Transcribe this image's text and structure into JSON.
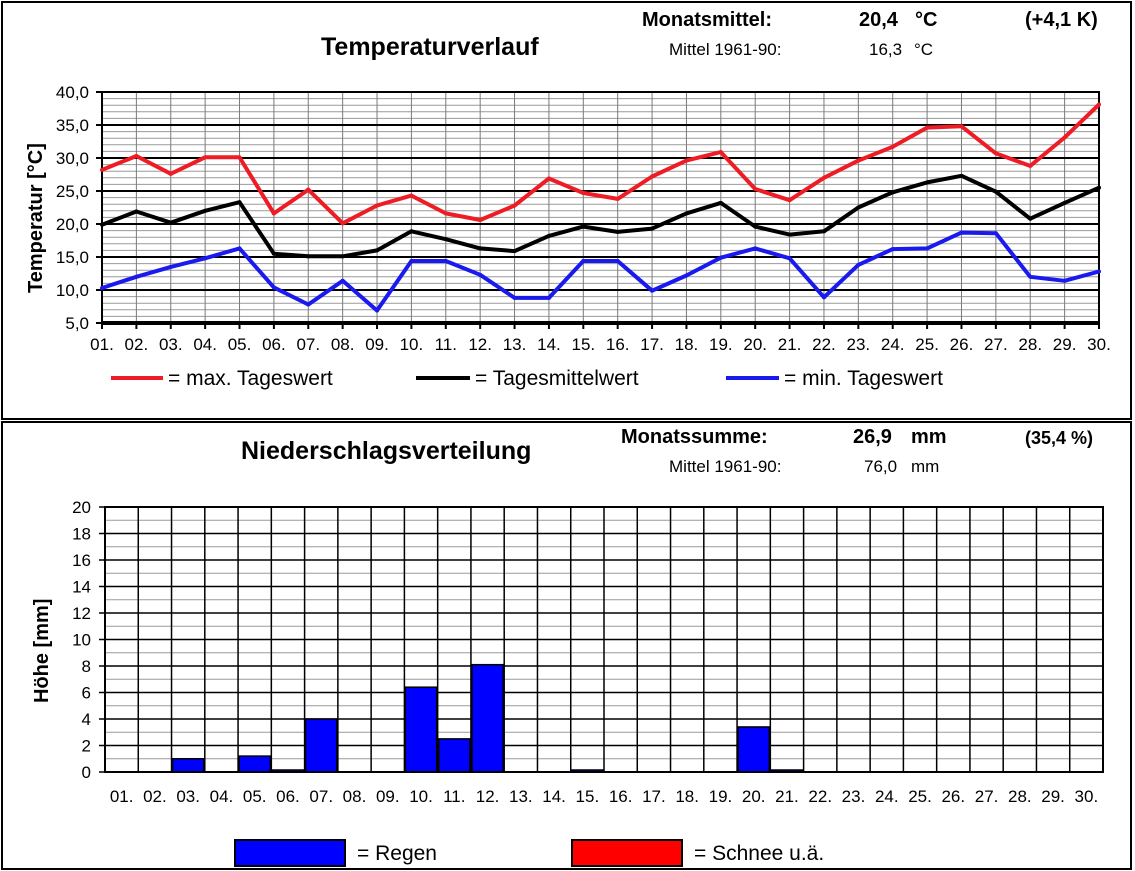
{
  "temperature": {
    "title": "Temperaturverlauf",
    "monthly_mean_label": "Monatsmittel:",
    "monthly_mean_value": "20,4",
    "monthly_mean_unit": "°C",
    "monthly_mean_anomaly": "(+4,1 K)",
    "ref_label": "Mittel 1961-90:",
    "ref_value": "16,3",
    "ref_unit": "°C",
    "legend": {
      "max": "= max.  Tageswert",
      "mean": "= Tagesmittelwert",
      "min": "= min. Tageswert"
    }
  },
  "precipitation": {
    "title": "Niederschlagsverteilung",
    "monthly_sum_label": "Monatssumme:",
    "monthly_sum_value": "26,9",
    "monthly_sum_unit": "mm",
    "monthly_sum_percent": "(35,4 %)",
    "ref_label": "Mittel 1961-90:",
    "ref_value": "76,0",
    "ref_unit": "mm",
    "legend": {
      "rain": "= Regen",
      "snow": "= Schnee u.ä."
    }
  },
  "colors": {
    "max": "#ee1c24",
    "mean": "#000000",
    "min": "#1a1aee",
    "rain": "#0000ff",
    "snow": "#ff0000"
  },
  "chart_data": [
    {
      "type": "line",
      "title": "Temperaturverlauf",
      "ylabel": "Temperatur [°C]",
      "ylim": [
        5,
        40
      ],
      "yticks": [
        "5,0",
        "10,0",
        "15,0",
        "20,0",
        "25,0",
        "30,0",
        "35,0",
        "40,0"
      ],
      "x": [
        "01.",
        "02.",
        "03.",
        "04.",
        "05.",
        "06.",
        "07.",
        "08.",
        "09.",
        "10.",
        "11.",
        "12.",
        "13.",
        "14.",
        "15.",
        "16.",
        "17.",
        "18.",
        "19.",
        "20.",
        "21.",
        "22.",
        "23.",
        "24.",
        "25.",
        "26.",
        "27.",
        "28.",
        "29.",
        "30."
      ],
      "grid": true,
      "series": [
        {
          "key": "max",
          "values": [
            28.2,
            30.3,
            27.6,
            30.1,
            30.1,
            21.6,
            25.2,
            20.1,
            22.8,
            24.3,
            21.6,
            20.6,
            22.8,
            26.9,
            24.7,
            23.8,
            27.2,
            29.6,
            30.9,
            25.3,
            23.6,
            27.0,
            29.6,
            31.7,
            34.6,
            34.8,
            30.7,
            28.8,
            33.1,
            38.1
          ]
        },
        {
          "key": "mean",
          "values": [
            19.9,
            21.9,
            20.2,
            22.0,
            23.3,
            15.5,
            15.1,
            15.1,
            16.0,
            18.9,
            17.7,
            16.3,
            15.9,
            18.2,
            19.6,
            18.8,
            19.3,
            21.6,
            23.2,
            19.6,
            18.4,
            18.9,
            22.5,
            24.8,
            26.3,
            27.3,
            24.9,
            20.8,
            23.2,
            25.5
          ]
        },
        {
          "key": "min",
          "values": [
            10.3,
            12.0,
            13.5,
            14.8,
            16.3,
            10.4,
            7.8,
            11.4,
            6.9,
            14.4,
            14.4,
            12.3,
            8.8,
            8.8,
            14.4,
            14.4,
            9.9,
            12.2,
            14.9,
            16.3,
            14.8,
            8.9,
            13.8,
            16.2,
            16.3,
            18.7,
            18.6,
            12.0,
            11.4,
            12.8
          ]
        }
      ]
    },
    {
      "type": "bar",
      "title": "Niederschlagsverteilung",
      "ylabel": "Höhe [mm]",
      "ylim": [
        0,
        20
      ],
      "yticks": [
        "0",
        "2",
        "4",
        "6",
        "8",
        "10",
        "12",
        "14",
        "16",
        "18",
        "20"
      ],
      "categories": [
        "01.",
        "02.",
        "03.",
        "04.",
        "05.",
        "06.",
        "07.",
        "08.",
        "09.",
        "10.",
        "11.",
        "12.",
        "13.",
        "14.",
        "15.",
        "16.",
        "17.",
        "18.",
        "19.",
        "20.",
        "21.",
        "22.",
        "23.",
        "24.",
        "25.",
        "26.",
        "27.",
        "28.",
        "29.",
        "30."
      ],
      "grid": true,
      "series": [
        {
          "key": "rain",
          "values": [
            0,
            0,
            1.0,
            0,
            1.2,
            0.1,
            4.0,
            0,
            0,
            6.4,
            2.5,
            8.1,
            0,
            0,
            0.1,
            0,
            0,
            0,
            0,
            3.4,
            0.1,
            0,
            0,
            0,
            0,
            0,
            0,
            0,
            0,
            0
          ]
        },
        {
          "key": "snow",
          "values": [
            0,
            0,
            0,
            0,
            0,
            0,
            0,
            0,
            0,
            0,
            0,
            0,
            0,
            0,
            0,
            0,
            0,
            0,
            0,
            0,
            0,
            0,
            0,
            0,
            0,
            0,
            0,
            0,
            0,
            0
          ]
        }
      ]
    }
  ]
}
